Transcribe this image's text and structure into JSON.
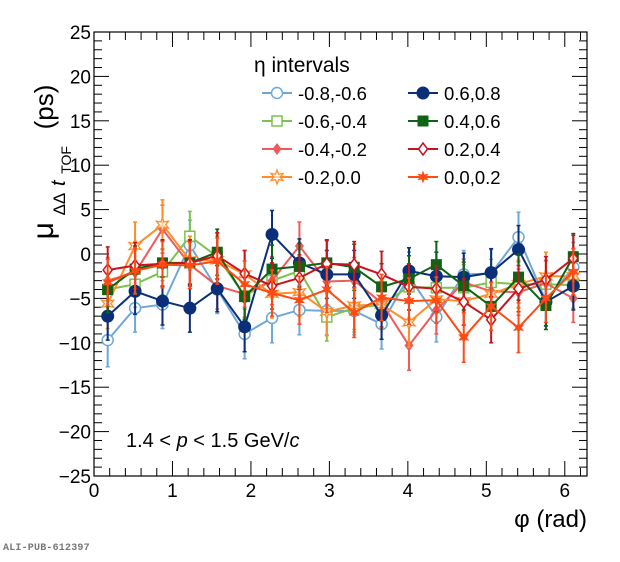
{
  "chart_data": {
    "type": "line",
    "title": "",
    "xlabel": "φ (rad)",
    "ylabel": "μΔΔt_TOF (ps)",
    "ylabel_parts": {
      "mu": "μ",
      "sub_delta": "ΔΔ",
      "sub_t": "t",
      "sub_tof": "TOF",
      "unit": "(ps)"
    },
    "xlim": [
      0,
      6.2832
    ],
    "ylim": [
      -25,
      25
    ],
    "xticks": [
      0,
      1,
      2,
      3,
      4,
      5,
      6
    ],
    "xtick_labels": [
      "0",
      "1",
      "2",
      "3",
      "4",
      "5",
      "6"
    ],
    "yticks": [
      -25,
      -20,
      -15,
      -10,
      -5,
      0,
      5,
      10,
      15,
      20,
      25
    ],
    "ytick_labels": [
      "−25",
      "−20",
      "−15",
      "−10",
      "−5",
      "0",
      "5",
      "10",
      "15",
      "20",
      "25"
    ],
    "grid": false,
    "legend": {
      "title": "η intervals",
      "placement": "top-center",
      "columns": 2
    },
    "annotation": {
      "prefix": "1.4 < ",
      "p": "p",
      "middle": " < 1.5 GeV/",
      "c": "c"
    },
    "x": [
      0.1745,
      0.5236,
      0.8727,
      1.2217,
      1.5708,
      1.9199,
      2.2689,
      2.618,
      2.9671,
      3.3161,
      3.6652,
      4.0143,
      4.3633,
      4.7124,
      5.0615,
      5.4105,
      5.7596,
      6.1087
    ],
    "series": [
      {
        "name": "-0.8,-0.6",
        "color": "#6fa8d6",
        "marker": "open-circle",
        "values": [
          -9.7,
          -6.1,
          -5.7,
          1.0,
          -4.0,
          -9.0,
          -7.2,
          -6.3,
          -6.4,
          -6.4,
          -7.9,
          -2.5,
          -7.1,
          -2.3,
          -2.2,
          1.9,
          -5.3,
          -1.5
        ],
        "errors": [
          3.0,
          2.7,
          2.7,
          2.8,
          2.7,
          2.8,
          2.8,
          2.8,
          2.7,
          2.7,
          2.8,
          2.7,
          2.8,
          2.7,
          2.7,
          2.8,
          2.8,
          2.8
        ]
      },
      {
        "name": "-0.6,-0.4",
        "color": "#7cc24e",
        "marker": "open-square",
        "values": [
          -4.0,
          -3.4,
          -2.0,
          2.0,
          -0.3,
          -4.7,
          -3.0,
          -1.9,
          -7.1,
          -6.1,
          -5.7,
          -3.7,
          -3.8,
          -3.8,
          -3.2,
          -3.4,
          -3.4,
          -3.5
        ],
        "errors": [
          2.6,
          2.6,
          2.6,
          2.8,
          2.6,
          2.6,
          2.7,
          2.6,
          2.7,
          2.7,
          2.6,
          2.6,
          2.7,
          2.6,
          2.6,
          2.6,
          2.6,
          2.6
        ]
      },
      {
        "name": "-0.4,-0.2",
        "color": "#f05a5a",
        "marker": "filled-diamond",
        "values": [
          -3.0,
          -2.1,
          2.8,
          -1.2,
          -3.6,
          -4.5,
          -3.0,
          0.9,
          -3.1,
          -3.0,
          -5.5,
          -10.3,
          -6.3,
          -3.2,
          -4.2,
          -4.3,
          -3.3,
          -5.0
        ],
        "errors": [
          2.6,
          2.6,
          2.7,
          2.7,
          2.6,
          2.6,
          2.7,
          2.7,
          2.6,
          2.6,
          2.7,
          2.8,
          2.7,
          2.6,
          2.6,
          2.6,
          2.6,
          2.7
        ]
      },
      {
        "name": "-0.2,0.0",
        "color": "#ff8c28",
        "marker": "open-star",
        "values": [
          -5.6,
          0.9,
          3.3,
          -0.7,
          -0.7,
          -2.3,
          -4.5,
          -4.3,
          -6.5,
          -5.8,
          -5.7,
          -7.7,
          -5.1,
          -5.3,
          -4.5,
          -3.4,
          -2.5,
          -2.5
        ],
        "errors": [
          2.8,
          2.7,
          2.8,
          2.7,
          2.7,
          2.7,
          2.7,
          2.7,
          2.7,
          2.7,
          2.7,
          2.8,
          2.7,
          2.7,
          2.7,
          2.7,
          2.7,
          2.7
        ]
      },
      {
        "name": "0.6,0.8",
        "color": "#0a2f78",
        "marker": "filled-circle",
        "values": [
          -7.0,
          -4.2,
          -5.3,
          -6.1,
          -3.9,
          -8.2,
          2.2,
          -1.0,
          -2.3,
          -2.3,
          -6.9,
          -1.9,
          -2.5,
          -2.6,
          -2.1,
          0.5,
          -5.4,
          -3.6
        ],
        "errors": [
          2.7,
          2.6,
          2.7,
          2.7,
          2.6,
          2.8,
          2.7,
          2.7,
          2.7,
          2.7,
          2.7,
          2.6,
          2.7,
          2.7,
          2.7,
          2.7,
          2.7,
          2.7
        ]
      },
      {
        "name": "0.4,0.6",
        "color": "#0e6314",
        "marker": "filled-square",
        "values": [
          -4.0,
          -1.7,
          -1.0,
          -1.0,
          0.2,
          -4.8,
          -1.7,
          -1.4,
          -1.0,
          -1.5,
          -3.7,
          -2.8,
          -1.2,
          -3.6,
          -5.9,
          -2.6,
          -5.8,
          -0.3
        ],
        "errors": [
          2.6,
          2.6,
          2.6,
          2.6,
          2.6,
          2.6,
          2.7,
          2.6,
          2.6,
          2.6,
          2.6,
          2.6,
          2.6,
          2.7,
          2.7,
          2.6,
          2.7,
          2.6
        ]
      },
      {
        "name": "0.2,0.4",
        "color": "#c8141e",
        "marker": "open-diamond",
        "values": [
          -1.8,
          -1.3,
          -1.1,
          -1.0,
          -0.2,
          -2.2,
          -3.6,
          -2.7,
          -1.1,
          -1.2,
          -2.3,
          -3.7,
          -3.9,
          -5.4,
          -7.4,
          -3.9,
          -2.9,
          -0.5
        ],
        "errors": [
          2.6,
          2.6,
          2.6,
          2.6,
          2.6,
          2.6,
          2.6,
          2.6,
          2.6,
          2.6,
          2.6,
          2.6,
          2.6,
          2.6,
          2.6,
          2.6,
          2.6,
          2.6
        ]
      },
      {
        "name": "0.0,0.2",
        "color": "#ff4a14",
        "marker": "filled-star",
        "values": [
          -3.2,
          -1.9,
          -1.2,
          -1.3,
          -0.8,
          -3.4,
          -4.4,
          -5.2,
          -4.0,
          -6.6,
          -4.9,
          -5.3,
          -5.2,
          -9.4,
          -5.9,
          -8.3,
          -5.0,
          -2.0
        ],
        "errors": [
          2.6,
          2.6,
          2.6,
          2.6,
          2.6,
          2.6,
          2.6,
          2.7,
          2.6,
          2.8,
          2.6,
          2.6,
          2.6,
          2.8,
          2.7,
          2.8,
          2.7,
          2.6
        ]
      }
    ],
    "legend_order": [
      0,
      4,
      1,
      5,
      2,
      6,
      3,
      7
    ]
  },
  "footer": {
    "label": "ALI-PUB-612397"
  }
}
